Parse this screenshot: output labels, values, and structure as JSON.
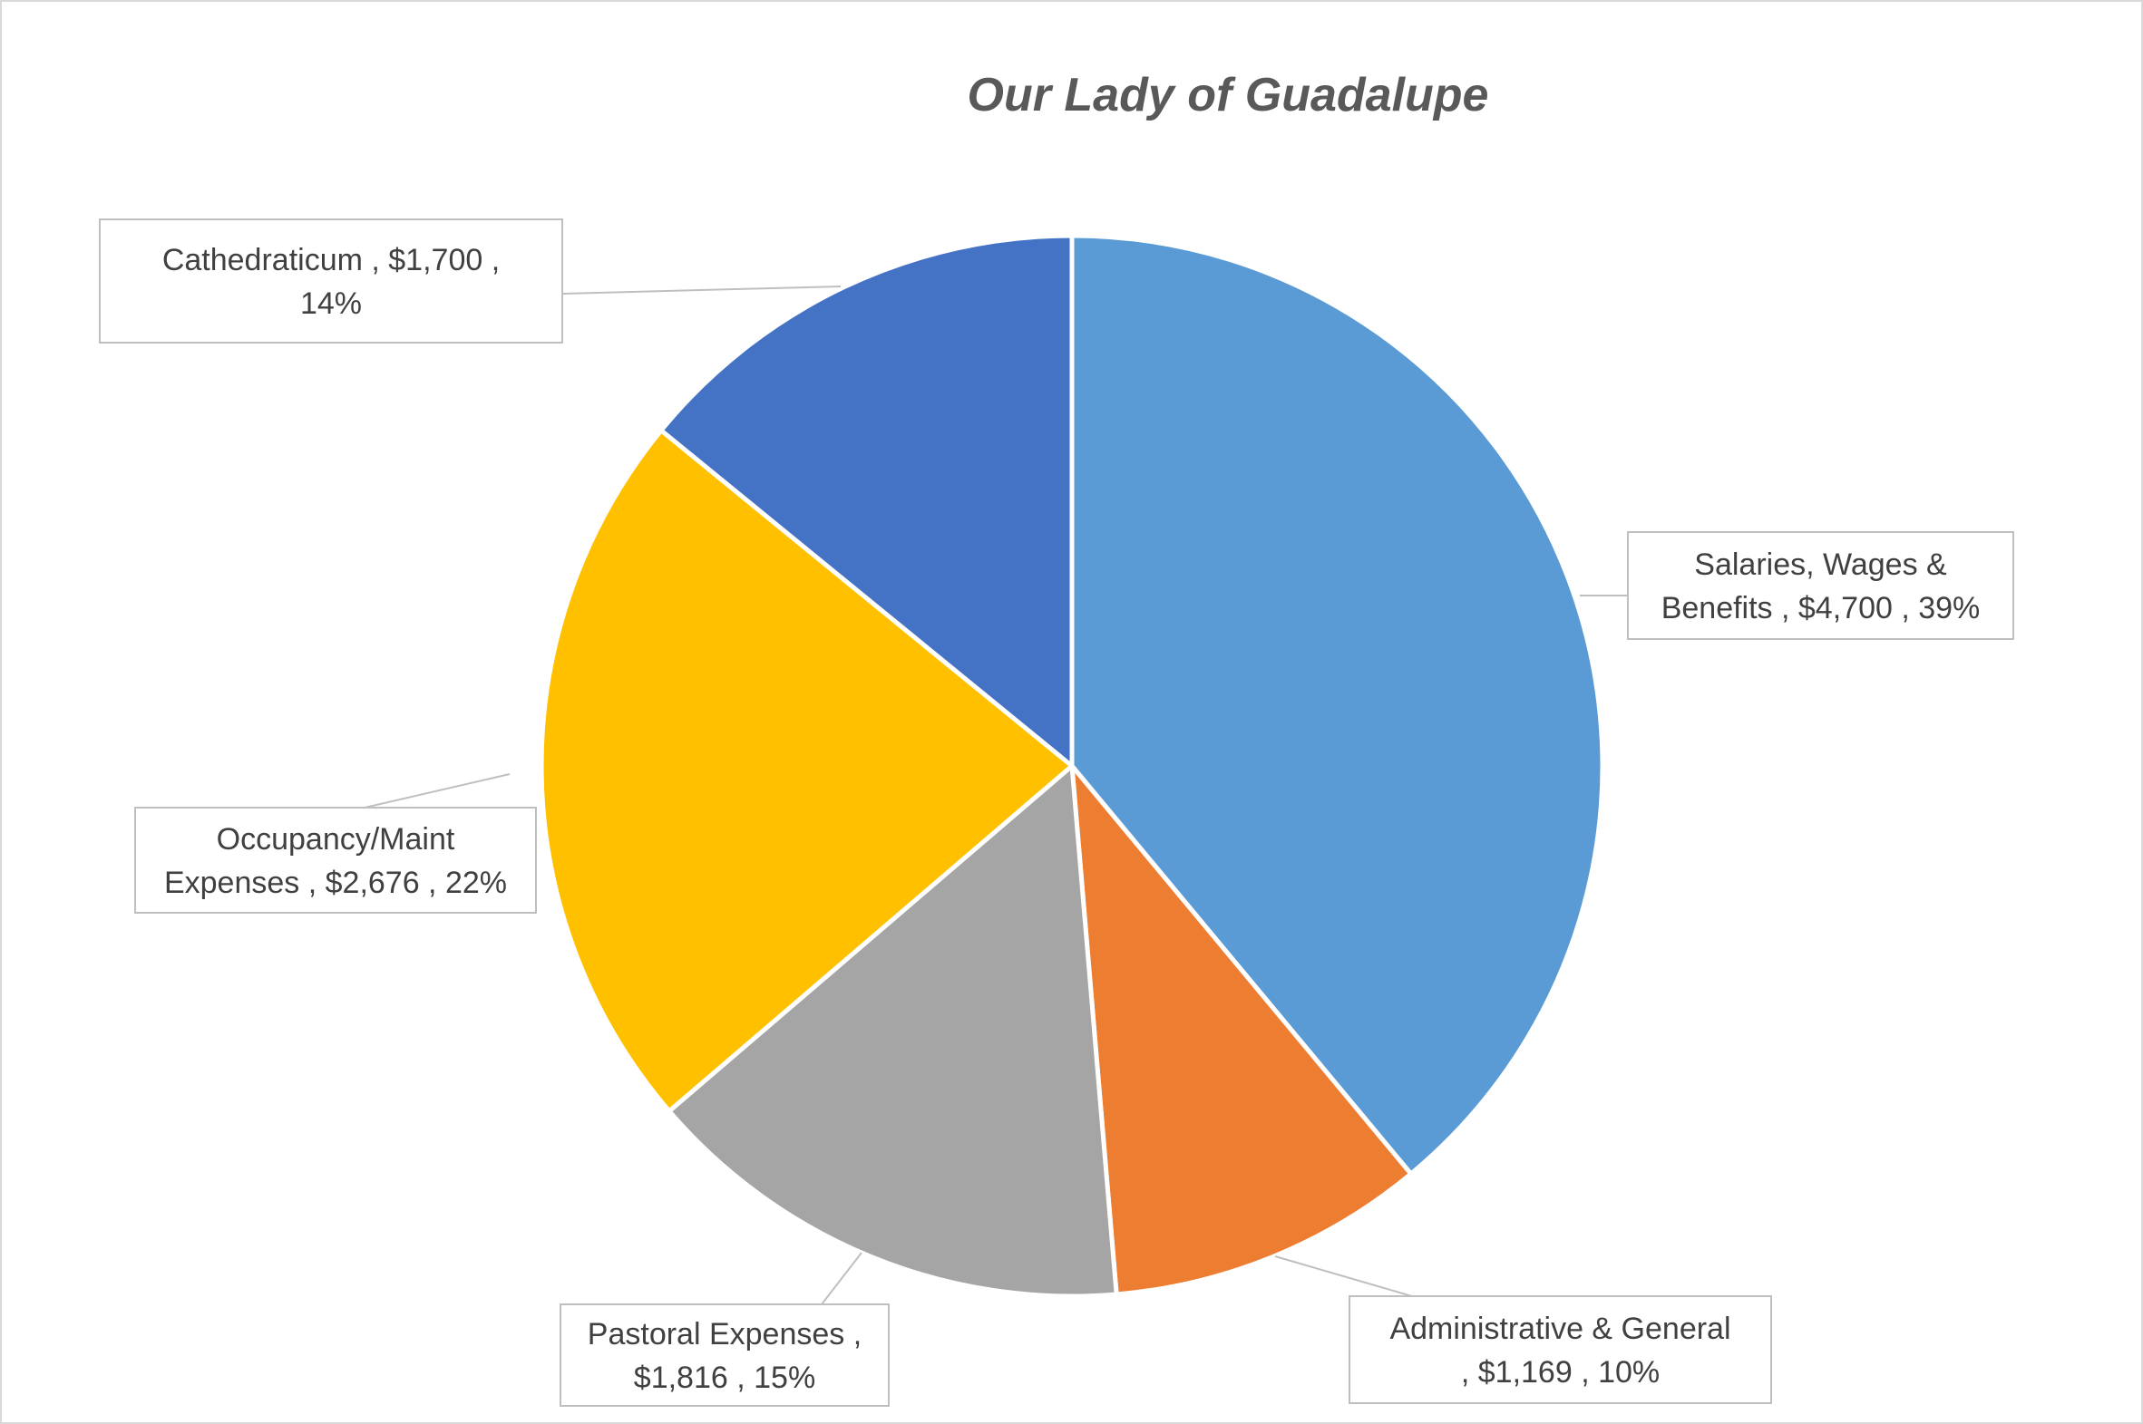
{
  "chart_data": {
    "type": "pie",
    "title": "Our Lady of Guadalupe",
    "slices": [
      {
        "name": "Salaries, Wages & Benefits",
        "value": 4700,
        "value_label": "$4,700",
        "percent_label": "39%",
        "label_lines": [
          "Salaries, Wages &",
          "Benefits ,  $4,700 , 39%"
        ],
        "color": "#5B9BD5"
      },
      {
        "name": "Administrative & General",
        "value": 1169,
        "value_label": "$1,169",
        "percent_label": "10%",
        "label_lines": [
          "Administrative & General",
          ",  $1,169 , 10%"
        ],
        "color": "#ED7D31"
      },
      {
        "name": "Pastoral Expenses",
        "value": 1816,
        "value_label": "$1,816",
        "percent_label": "15%",
        "label_lines": [
          "Pastoral Expenses ,",
          "$1,816 , 15%"
        ],
        "color": "#A5A5A5"
      },
      {
        "name": "Occupancy/Maint Expenses",
        "value": 2676,
        "value_label": "$2,676",
        "percent_label": "22%",
        "label_lines": [
          "Occupancy/Maint",
          "Expenses ,  $2,676 , 22%"
        ],
        "color": "#FFC000"
      },
      {
        "name": "Cathedraticum",
        "value": 1700,
        "value_label": "$1,700",
        "percent_label": "14%",
        "label_lines": [
          "Cathedraticum ,  $1,700 ,",
          "14%"
        ],
        "color": "#4472C4"
      }
    ],
    "start_angle": "12 o'clock",
    "direction": "clockwise",
    "legend": "none",
    "labels": "callouts"
  }
}
